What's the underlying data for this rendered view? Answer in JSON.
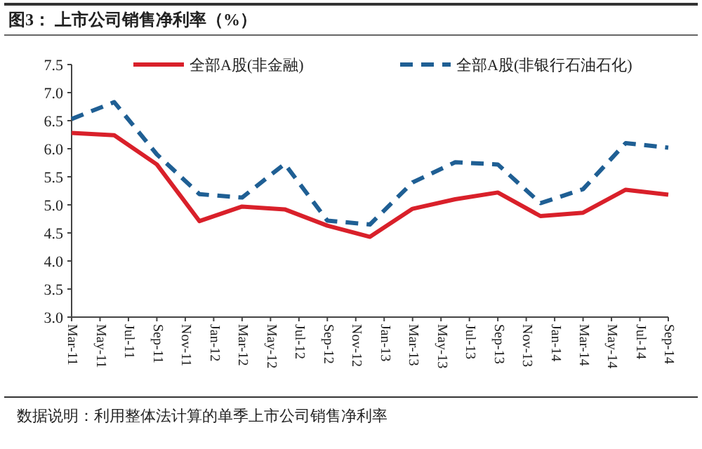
{
  "chart_data": {
    "type": "line",
    "title": "图3：  上市公司销售净利率（%）",
    "x": [
      "2011-03",
      "2011-06",
      "2011-09",
      "2011-12",
      "2012-03",
      "2012-06",
      "2012-09",
      "2012-12",
      "2013-03",
      "2013-06",
      "2013-09",
      "2013-12",
      "2014-03",
      "2014-06",
      "2014-09"
    ],
    "series": [
      {
        "name": "全部A股(非金融)",
        "color": "#d9202a",
        "line_style": "solid",
        "values": [
          6.28,
          6.24,
          5.72,
          4.71,
          4.97,
          4.92,
          4.63,
          4.43,
          4.93,
          5.1,
          5.22,
          4.8,
          4.86,
          5.27,
          5.18
        ]
      },
      {
        "name": "全部A股(非银行石油石化)",
        "color": "#1f5f94",
        "line_style": "dashed",
        "values": [
          6.53,
          6.83,
          5.9,
          5.19,
          5.13,
          5.73,
          4.72,
          4.65,
          5.4,
          5.76,
          5.72,
          5.03,
          5.28,
          6.1,
          6.02
        ]
      }
    ],
    "xlim": [
      "2011-03",
      "2014-09"
    ],
    "xticks": [
      {
        "value": "2011-03",
        "label": "Mar-11"
      },
      {
        "value": "2011-05",
        "label": "May-11"
      },
      {
        "value": "2011-07",
        "label": "Jul-11"
      },
      {
        "value": "2011-09",
        "label": "Sep-11"
      },
      {
        "value": "2011-11",
        "label": "Nov-11"
      },
      {
        "value": "2012-01",
        "label": "Jan-12"
      },
      {
        "value": "2012-03",
        "label": "Mar-12"
      },
      {
        "value": "2012-05",
        "label": "May-12"
      },
      {
        "value": "2012-07",
        "label": "Jul-12"
      },
      {
        "value": "2012-09",
        "label": "Sep-12"
      },
      {
        "value": "2012-11",
        "label": "Nov-12"
      },
      {
        "value": "2013-01",
        "label": "Jan-13"
      },
      {
        "value": "2013-03",
        "label": "Mar-13"
      },
      {
        "value": "2013-05",
        "label": "May-13"
      },
      {
        "value": "2013-07",
        "label": "Jul-13"
      },
      {
        "value": "2013-09",
        "label": "Sep-13"
      },
      {
        "value": "2013-11",
        "label": "Nov-13"
      },
      {
        "value": "2014-01",
        "label": "Jan-14"
      },
      {
        "value": "2014-03",
        "label": "Mar-14"
      },
      {
        "value": "2014-05",
        "label": "May-14"
      },
      {
        "value": "2014-07",
        "label": "Jul-14"
      },
      {
        "value": "2014-09",
        "label": "Sep-14"
      }
    ],
    "ylim": [
      3.0,
      7.5
    ],
    "yticks": [
      {
        "value": 3,
        "label": "3.0"
      },
      {
        "value": 3.5,
        "label": "3.5"
      },
      {
        "value": 4,
        "label": "4.0"
      },
      {
        "value": 4.5,
        "label": "4.5"
      },
      {
        "value": 5,
        "label": "5.0"
      },
      {
        "value": 5.5,
        "label": "5.5"
      },
      {
        "value": 6,
        "label": "6.0"
      },
      {
        "value": 6.5,
        "label": "6.5"
      },
      {
        "value": 7,
        "label": "7.0"
      },
      {
        "value": 7.5,
        "label": "7.5"
      }
    ],
    "grid": false,
    "legend": "top",
    "marker": "none",
    "annotations": [
      "数据说明：利用整体法计算的单季上市公司销售净利率"
    ]
  }
}
